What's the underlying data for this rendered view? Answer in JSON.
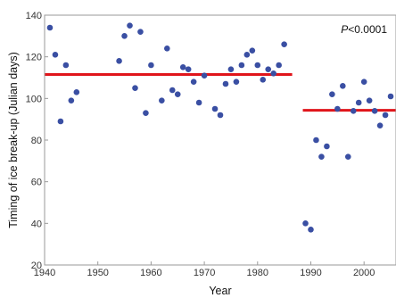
{
  "chart_data": {
    "type": "scatter",
    "title": "",
    "xlabel": "Year",
    "ylabel": "Timing of ice break-up (Julian days)",
    "xlim": [
      1940,
      2006
    ],
    "ylim": [
      20,
      140
    ],
    "x_ticks": [
      1940,
      1950,
      1960,
      1970,
      1980,
      1990,
      2000
    ],
    "y_ticks": [
      20,
      40,
      60,
      80,
      100,
      120,
      140
    ],
    "x_tick_labels": [
      "1940",
      "1950",
      "1960",
      "1970",
      "1980",
      "1990",
      "2000"
    ],
    "y_tick_labels": [
      "20",
      "40",
      "60",
      "80",
      "100",
      "120",
      "140"
    ],
    "grid": false,
    "annotation": {
      "italic": "P",
      "rest": "<0.0001"
    },
    "point_color": "#3a4fa3",
    "line_color": "#e0151b",
    "points": [
      {
        "x": 1941,
        "y": 134
      },
      {
        "x": 1942,
        "y": 121
      },
      {
        "x": 1943,
        "y": 89
      },
      {
        "x": 1944,
        "y": 116
      },
      {
        "x": 1945,
        "y": 99
      },
      {
        "x": 1946,
        "y": 103
      },
      {
        "x": 1954,
        "y": 118
      },
      {
        "x": 1955,
        "y": 130
      },
      {
        "x": 1956,
        "y": 135
      },
      {
        "x": 1957,
        "y": 105
      },
      {
        "x": 1958,
        "y": 132
      },
      {
        "x": 1959,
        "y": 93
      },
      {
        "x": 1960,
        "y": 116
      },
      {
        "x": 1962,
        "y": 99
      },
      {
        "x": 1963,
        "y": 124
      },
      {
        "x": 1964,
        "y": 104
      },
      {
        "x": 1965,
        "y": 102
      },
      {
        "x": 1966,
        "y": 115
      },
      {
        "x": 1967,
        "y": 114
      },
      {
        "x": 1968,
        "y": 108
      },
      {
        "x": 1969,
        "y": 98
      },
      {
        "x": 1970,
        "y": 111
      },
      {
        "x": 1972,
        "y": 95
      },
      {
        "x": 1973,
        "y": 92
      },
      {
        "x": 1974,
        "y": 107
      },
      {
        "x": 1975,
        "y": 114
      },
      {
        "x": 1976,
        "y": 108
      },
      {
        "x": 1977,
        "y": 116
      },
      {
        "x": 1978,
        "y": 121
      },
      {
        "x": 1979,
        "y": 123
      },
      {
        "x": 1980,
        "y": 116
      },
      {
        "x": 1981,
        "y": 109
      },
      {
        "x": 1982,
        "y": 114
      },
      {
        "x": 1983,
        "y": 112
      },
      {
        "x": 1984,
        "y": 116
      },
      {
        "x": 1985,
        "y": 126
      },
      {
        "x": 1989,
        "y": 40
      },
      {
        "x": 1990,
        "y": 37
      },
      {
        "x": 1991,
        "y": 80
      },
      {
        "x": 1992,
        "y": 72
      },
      {
        "x": 1993,
        "y": 77
      },
      {
        "x": 1994,
        "y": 102
      },
      {
        "x": 1995,
        "y": 95
      },
      {
        "x": 1996,
        "y": 106
      },
      {
        "x": 1997,
        "y": 72
      },
      {
        "x": 1998,
        "y": 94
      },
      {
        "x": 1999,
        "y": 98
      },
      {
        "x": 2000,
        "y": 108
      },
      {
        "x": 2001,
        "y": 99
      },
      {
        "x": 2002,
        "y": 94
      },
      {
        "x": 2003,
        "y": 87
      },
      {
        "x": 2004,
        "y": 92
      },
      {
        "x": 2005,
        "y": 101
      }
    ],
    "segments": [
      {
        "x": [
          1940,
          1986.5
        ],
        "y": 111.5
      },
      {
        "x": [
          1988.5,
          2006
        ],
        "y": 94.3
      }
    ]
  }
}
